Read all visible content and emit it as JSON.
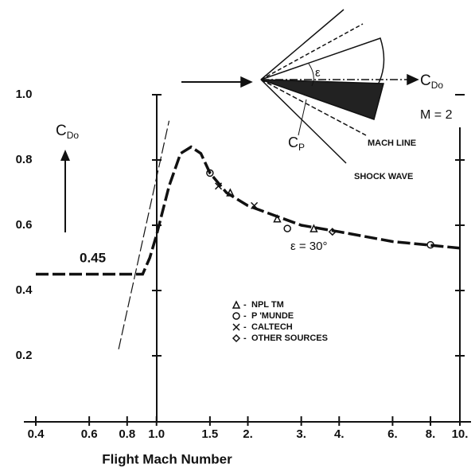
{
  "chart_data": {
    "type": "line",
    "x_label": "Flight Mach Number",
    "y_label": "C",
    "y_label_sub": "Do",
    "xlim": [
      0.4,
      10
    ],
    "log_x": true,
    "xticks": [
      0.4,
      0.6,
      0.8,
      {
        "value": 1,
        "label": "1.0"
      },
      1.5,
      {
        "value": 2,
        "label": "2."
      },
      {
        "value": 3,
        "label": "3."
      },
      {
        "value": 4,
        "label": "4."
      },
      {
        "value": 6,
        "label": "6."
      },
      {
        "value": 8,
        "label": "8."
      },
      {
        "value": 10,
        "label": "10."
      }
    ],
    "ylim": [
      0,
      1.0
    ],
    "yticks": [
      0.2,
      0.4,
      0.6,
      0.8,
      {
        "value": 1,
        "label": "1.0"
      }
    ],
    "curve": {
      "x": [
        0.4,
        0.9,
        0.95,
        1.0,
        1.1,
        1.2,
        1.3,
        1.4,
        1.5,
        1.7,
        2,
        3,
        4,
        6,
        10
      ],
      "values": [
        0.45,
        0.45,
        0.5,
        0.57,
        0.72,
        0.82,
        0.84,
        0.82,
        0.76,
        0.7,
        0.66,
        0.6,
        0.58,
        0.55,
        0.53
      ],
      "color": "#111111"
    },
    "tangent": {
      "x": [
        0.75,
        1.1
      ],
      "values": [
        0.22,
        0.92
      ]
    },
    "series": [
      {
        "name": "NPL  TM",
        "marker": "triangle",
        "x": [
          1.75,
          2.5,
          3.3
        ],
        "values": [
          0.7,
          0.62,
          0.59
        ]
      },
      {
        "name": "P 'MUNDE",
        "marker": "circle",
        "x": [
          1.5,
          2.7,
          8
        ],
        "values": [
          0.76,
          0.59,
          0.54
        ]
      },
      {
        "name": "CALTECH",
        "marker": "cross",
        "x": [
          1.6,
          2.1
        ],
        "values": [
          0.72,
          0.66
        ]
      },
      {
        "name": "OTHER SOURCES",
        "marker": "diamond",
        "x": [
          3.8
        ],
        "values": [
          0.58
        ]
      }
    ],
    "annotations": {
      "level": "0.45",
      "angle": "ε = 30°",
      "inset": {
        "drag": "C",
        "drag_sub": "Do",
        "epsilon": "ε",
        "pressure": "C",
        "pressure_sub": "P",
        "mach": "M = 2",
        "mach_line": "MACH LINE",
        "shock": "SHOCK WAVE"
      }
    }
  }
}
